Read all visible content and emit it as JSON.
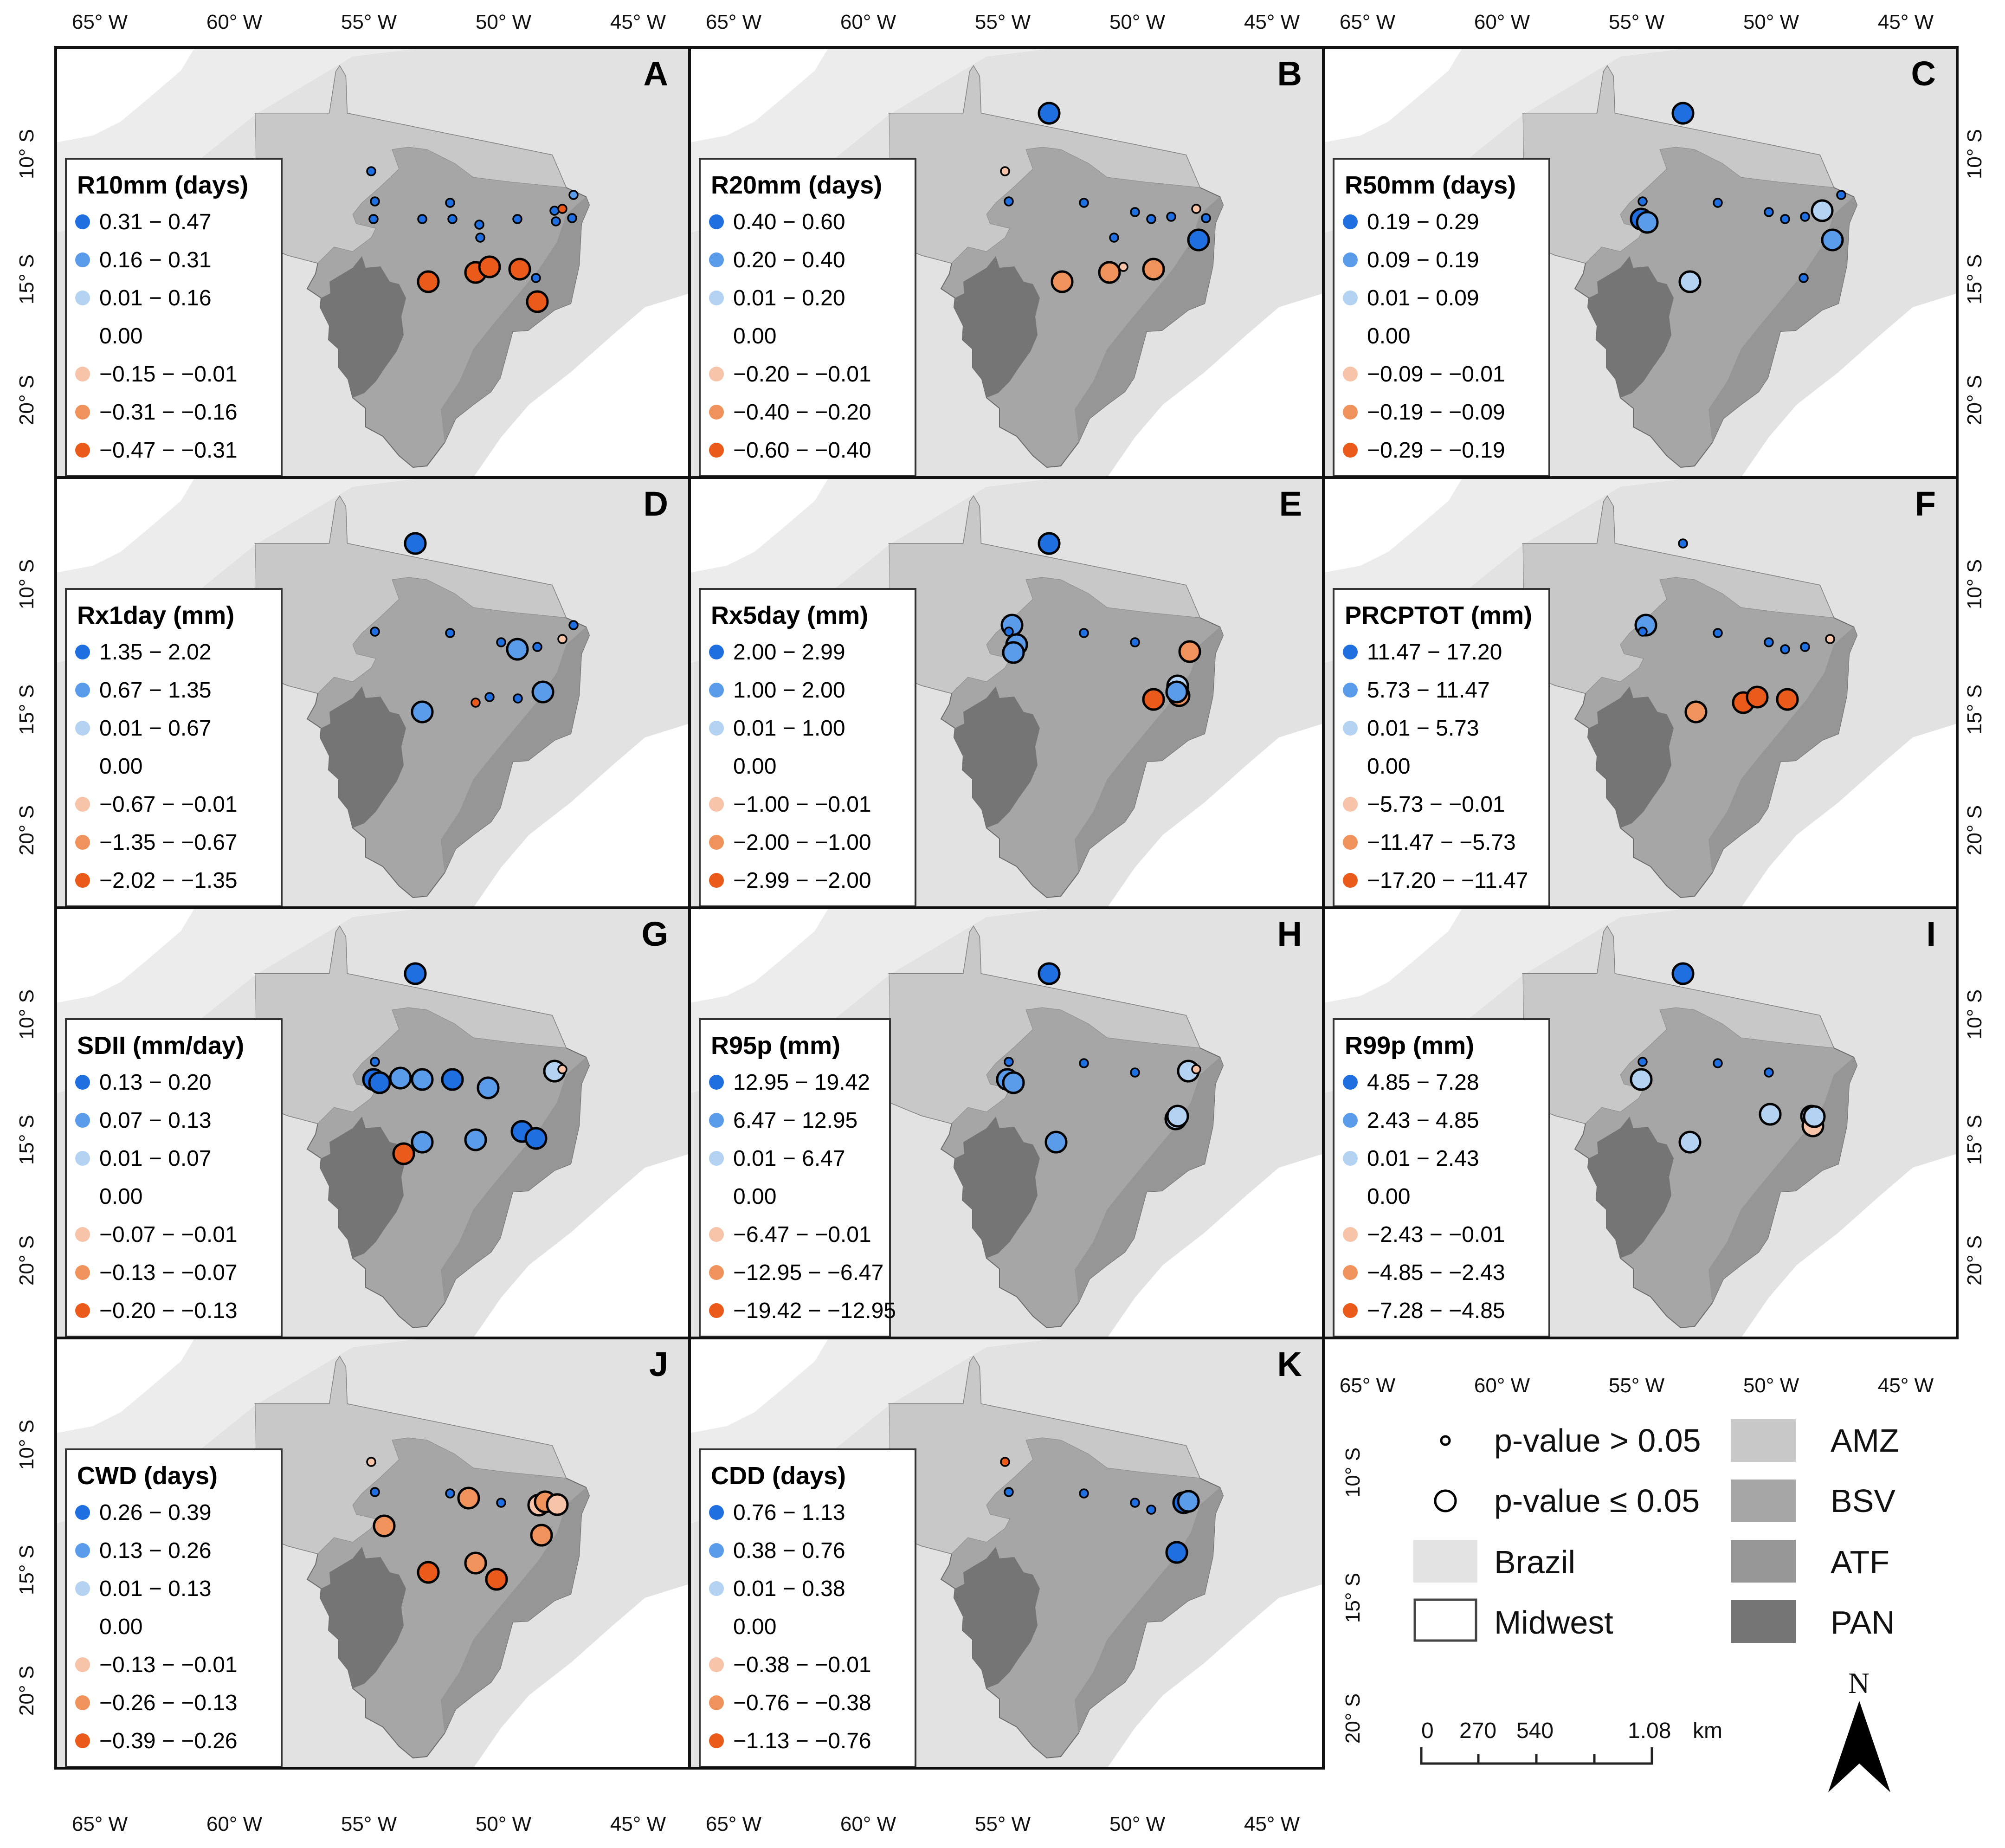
{
  "colors": {
    "background": "#e3e3e3",
    "amz": "#c8c8c8",
    "bsv": "#a6a6a6",
    "atf": "#969696",
    "pan": "#757575",
    "pos_dark": "#1f6fe0",
    "pos_mid": "#5b9cea",
    "pos_light": "#b4d2f2",
    "neg_light": "#f7c3a9",
    "neg_mid": "#f0925c",
    "neg_dark": "#ea5a1a"
  },
  "axes": {
    "lon_labels": [
      "65° W",
      "60° W",
      "55° W",
      "50° W",
      "45° W"
    ],
    "lat_labels": [
      "10° S",
      "15° S",
      "20° S"
    ]
  },
  "panels": [
    {
      "letter": "A",
      "title": "R10mm (days)",
      "items": [
        "0.31 − 0.47",
        "0.16 − 0.31",
        "0.01 − 0.16",
        "0.00",
        "−0.15 − −0.01",
        "−0.31 − −0.16",
        "−0.47 − −0.31"
      ],
      "stations": [
        [
          5,
          3,
          0
        ],
        [
          7,
          3,
          0
        ],
        [
          8,
          3,
          0
        ],
        [
          9,
          3,
          0
        ],
        [
          10,
          3,
          0
        ],
        [
          11,
          3,
          0
        ],
        [
          13,
          3,
          0
        ],
        [
          15,
          3,
          0
        ],
        [
          17,
          3,
          0
        ],
        [
          18,
          2,
          0
        ],
        [
          22,
          3,
          0
        ],
        [
          29,
          -3,
          1
        ],
        [
          30,
          -3,
          1
        ],
        [
          31,
          -3,
          1
        ],
        [
          32,
          -3,
          1
        ],
        [
          33,
          3,
          0
        ],
        [
          34,
          -3,
          0
        ],
        [
          35,
          3,
          0
        ],
        [
          36,
          -3,
          1
        ],
        [
          4,
          3,
          0
        ]
      ]
    },
    {
      "letter": "B",
      "title": "R20mm (days)",
      "items": [
        "0.40 − 0.60",
        "0.20 − 0.40",
        "0.01 − 0.20",
        "0.00",
        "−0.20 − −0.01",
        "−0.40 − −0.20",
        "−0.60 − −0.40"
      ],
      "stations": [
        [
          0,
          3,
          1
        ],
        [
          4,
          -1,
          0
        ],
        [
          13,
          3,
          0
        ],
        [
          29,
          -2,
          1
        ],
        [
          30,
          -2,
          1
        ],
        [
          31,
          -1,
          0
        ],
        [
          32,
          -2,
          1
        ],
        [
          34,
          -1,
          0
        ],
        [
          35,
          3,
          0
        ],
        [
          37,
          3,
          1
        ],
        [
          7,
          3,
          0
        ],
        [
          9,
          3,
          0
        ],
        [
          14,
          3,
          0
        ],
        [
          15,
          3,
          0
        ],
        [
          16,
          3,
          0
        ]
      ]
    },
    {
      "letter": "C",
      "title": "R50mm (days)",
      "items": [
        "0.19 − 0.29",
        "0.09 − 0.19",
        "0.01 − 0.09",
        "0.00",
        "−0.09 − −0.01",
        "−0.19 − −0.09",
        "−0.29 − −0.19"
      ],
      "stations": [
        [
          0,
          3,
          1
        ],
        [
          5,
          3,
          1
        ],
        [
          6,
          2,
          1
        ],
        [
          17,
          1,
          1
        ],
        [
          19,
          1,
          1
        ],
        [
          37,
          2,
          1
        ],
        [
          7,
          3,
          0
        ],
        [
          9,
          3,
          0
        ],
        [
          14,
          3,
          0
        ],
        [
          15,
          3,
          0
        ],
        [
          16,
          3,
          0
        ],
        [
          18,
          3,
          0
        ],
        [
          22,
          3,
          0
        ]
      ]
    },
    {
      "letter": "D",
      "title": "Rx1day (mm)",
      "items": [
        "1.35 − 2.02",
        "0.67 − 1.35",
        "0.01 − 0.67",
        "0.00",
        "−0.67 − −0.01",
        "−1.35 − −0.67",
        "−2.02 − −1.35"
      ],
      "stations": [
        [
          0,
          3,
          1
        ],
        [
          15,
          2,
          1
        ],
        [
          19,
          2,
          1
        ],
        [
          23,
          2,
          1
        ],
        [
          24,
          3,
          0
        ],
        [
          30,
          -3,
          0
        ],
        [
          31,
          3,
          0
        ],
        [
          34,
          -1,
          0
        ],
        [
          7,
          3,
          0
        ],
        [
          9,
          3,
          0
        ],
        [
          14,
          3,
          0
        ],
        [
          16,
          3,
          0
        ],
        [
          18,
          3,
          0
        ]
      ]
    },
    {
      "letter": "E",
      "title": "Rx5day (mm)",
      "items": [
        "2.00 − 2.99",
        "1.00 − 2.00",
        "0.01 − 1.00",
        "0.00",
        "−1.00 − −0.01",
        "−2.00 − −1.00",
        "−2.99 − −2.00"
      ],
      "stations": [
        [
          0,
          3,
          1
        ],
        [
          1,
          2,
          1
        ],
        [
          2,
          2,
          1
        ],
        [
          6,
          2,
          1
        ],
        [
          32,
          -3,
          1
        ],
        [
          33,
          -2,
          1
        ],
        [
          26,
          1,
          1
        ],
        [
          27,
          -2,
          1
        ],
        [
          23,
          2,
          1
        ],
        [
          7,
          3,
          0
        ],
        [
          9,
          3,
          0
        ],
        [
          14,
          3,
          0
        ]
      ]
    },
    {
      "letter": "F",
      "title": "PRCPTOT (mm)",
      "items": [
        "11.47 − 17.20",
        "5.73 − 11.47",
        "0.01 − 5.73",
        "0.00",
        "−5.73 − −0.01",
        "−11.47 − −5.73",
        "−17.20 − −11.47"
      ],
      "stations": [
        [
          0,
          3,
          0
        ],
        [
          1,
          2,
          1
        ],
        [
          29,
          -2,
          1
        ],
        [
          30,
          -3,
          1
        ],
        [
          31,
          -3,
          1
        ],
        [
          32,
          -3,
          1
        ],
        [
          34,
          -1,
          0
        ],
        [
          7,
          3,
          0
        ],
        [
          9,
          3,
          0
        ],
        [
          14,
          3,
          0
        ],
        [
          15,
          3,
          0
        ],
        [
          16,
          3,
          0
        ]
      ]
    },
    {
      "letter": "G",
      "title": "SDII (mm/day)",
      "items": [
        "0.13 − 0.20",
        "0.07 − 0.13",
        "0.01 − 0.07",
        "0.00",
        "−0.07 − −0.01",
        "−0.13 − −0.07",
        "−0.20 − −0.13"
      ],
      "stations": [
        [
          0,
          3,
          1
        ],
        [
          3,
          2,
          1
        ],
        [
          5,
          3,
          1
        ],
        [
          6,
          3,
          1
        ],
        [
          8,
          2,
          1
        ],
        [
          10,
          3,
          1
        ],
        [
          12,
          2,
          1
        ],
        [
          17,
          1,
          1
        ],
        [
          19,
          2,
          1
        ],
        [
          20,
          2,
          1
        ],
        [
          21,
          3,
          1
        ],
        [
          22,
          3,
          1
        ],
        [
          28,
          -3,
          1
        ],
        [
          34,
          -1,
          0
        ],
        [
          7,
          3,
          0
        ]
      ]
    },
    {
      "letter": "H",
      "title": "R95p (mm)",
      "items": [
        "12.95 − 19.42",
        "6.47 − 12.95",
        "0.01 − 6.47",
        "0.00",
        "−6.47 − −0.01",
        "−12.95 − −6.47",
        "−19.42 − −12.95"
      ],
      "stations": [
        [
          0,
          3,
          1
        ],
        [
          5,
          2,
          1
        ],
        [
          6,
          2,
          1
        ],
        [
          17,
          1,
          1
        ],
        [
          25,
          1,
          1
        ],
        [
          26,
          1,
          1
        ],
        [
          19,
          2,
          1
        ],
        [
          34,
          -1,
          0
        ],
        [
          7,
          3,
          0
        ],
        [
          9,
          3,
          0
        ],
        [
          14,
          3,
          0
        ]
      ]
    },
    {
      "letter": "I",
      "title": "R99p (mm)",
      "items": [
        "4.85 − 7.28",
        "2.43 − 4.85",
        "0.01 − 2.43",
        "0.00",
        "−2.43 − −0.01",
        "−4.85 − −2.43",
        "−7.28 − −4.85"
      ],
      "stations": [
        [
          0,
          3,
          1
        ],
        [
          5,
          1,
          1
        ],
        [
          26,
          1,
          1
        ],
        [
          27,
          -1,
          1
        ],
        [
          39,
          1,
          1
        ],
        [
          40,
          1,
          1
        ],
        [
          19,
          1,
          1
        ],
        [
          7,
          3,
          0
        ],
        [
          9,
          3,
          0
        ],
        [
          14,
          3,
          0
        ]
      ]
    },
    {
      "letter": "J",
      "title": "CWD (days)",
      "items": [
        "0.26 − 0.39",
        "0.13 − 0.26",
        "0.01 − 0.13",
        "0.00",
        "−0.13 − −0.01",
        "−0.26 − −0.13",
        "−0.39 − −0.26"
      ],
      "stations": [
        [
          4,
          -1,
          0
        ],
        [
          29,
          -3,
          1
        ],
        [
          30,
          -2,
          1
        ],
        [
          41,
          -2,
          1
        ],
        [
          42,
          -2,
          1
        ],
        [
          43,
          -1,
          1
        ],
        [
          44,
          -2,
          1
        ],
        [
          45,
          -2,
          1
        ],
        [
          46,
          -3,
          1
        ],
        [
          47,
          -1,
          1
        ],
        [
          7,
          3,
          0
        ],
        [
          9,
          3,
          0
        ],
        [
          14,
          3,
          0
        ]
      ]
    },
    {
      "letter": "K",
      "title": "CDD (days)",
      "items": [
        "0.76 − 1.13",
        "0.38 − 0.76",
        "0.01 − 0.38",
        "0.00",
        "−0.38 − −0.01",
        "−0.76 − −0.38",
        "−1.13 − −0.76"
      ],
      "stations": [
        [
          48,
          3,
          1
        ],
        [
          23,
          3,
          1
        ],
        [
          17,
          2,
          1
        ],
        [
          4,
          -3,
          0
        ],
        [
          7,
          3,
          0
        ],
        [
          9,
          3,
          0
        ],
        [
          14,
          3,
          0
        ],
        [
          15,
          3,
          0
        ]
      ]
    }
  ],
  "legend": {
    "p_gt": "p-value > 0.05",
    "p_le": "p-value ≤ 0.05",
    "brazil": "Brazil",
    "midwest": "Midwest",
    "amz": "AMZ",
    "bsv": "BSV",
    "atf": "ATF",
    "pan": "PAN"
  },
  "scalebar": {
    "ticks": [
      "0",
      "270",
      "540",
      "1.08"
    ],
    "unit": "km"
  },
  "north": "N"
}
